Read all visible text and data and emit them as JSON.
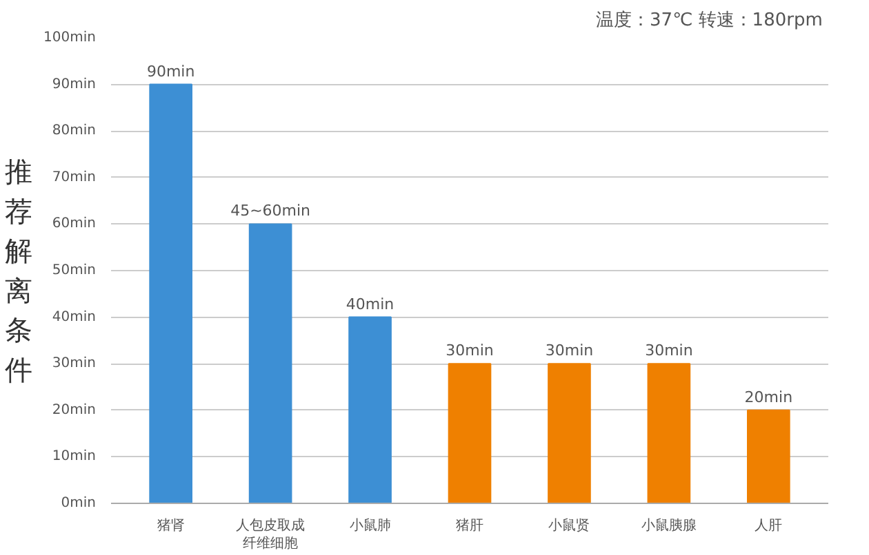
{
  "chart_data": {
    "type": "bar",
    "ylabel": "推荐解离条件",
    "annotations": [
      "温度：37℃  转速：180rpm"
    ],
    "categories": [
      "猪肾",
      "人包皮取成纤维细胞",
      "小鼠肺",
      "猪肝",
      "小鼠贤",
      "小鼠胰腺",
      "人肝"
    ],
    "values": [
      90,
      60,
      40,
      30,
      30,
      30,
      20
    ],
    "colors": [
      "#3d8fd4",
      "#3d8fd4",
      "#3d8fd4",
      "#ef8000",
      "#ef8000",
      "#ef8000",
      "#ef8000"
    ],
    "value_labels": [
      "90min",
      "45~60min",
      "40min",
      "30min",
      "30min",
      "30min",
      "20min"
    ],
    "ylim": [
      0,
      100
    ],
    "yticks": [
      {
        "value": 0,
        "label": "0min"
      },
      {
        "value": 10,
        "label": "10min"
      },
      {
        "value": 20,
        "label": "20min"
      },
      {
        "value": 30,
        "label": "30min"
      },
      {
        "value": 40,
        "label": "40min"
      },
      {
        "value": 50,
        "label": "50min"
      },
      {
        "value": 60,
        "label": "60min"
      },
      {
        "value": 70,
        "label": "70min"
      },
      {
        "value": 80,
        "label": "80min"
      },
      {
        "value": 90,
        "label": "90min"
      },
      {
        "value": 100,
        "label": "100min"
      }
    ],
    "grid": "y"
  }
}
